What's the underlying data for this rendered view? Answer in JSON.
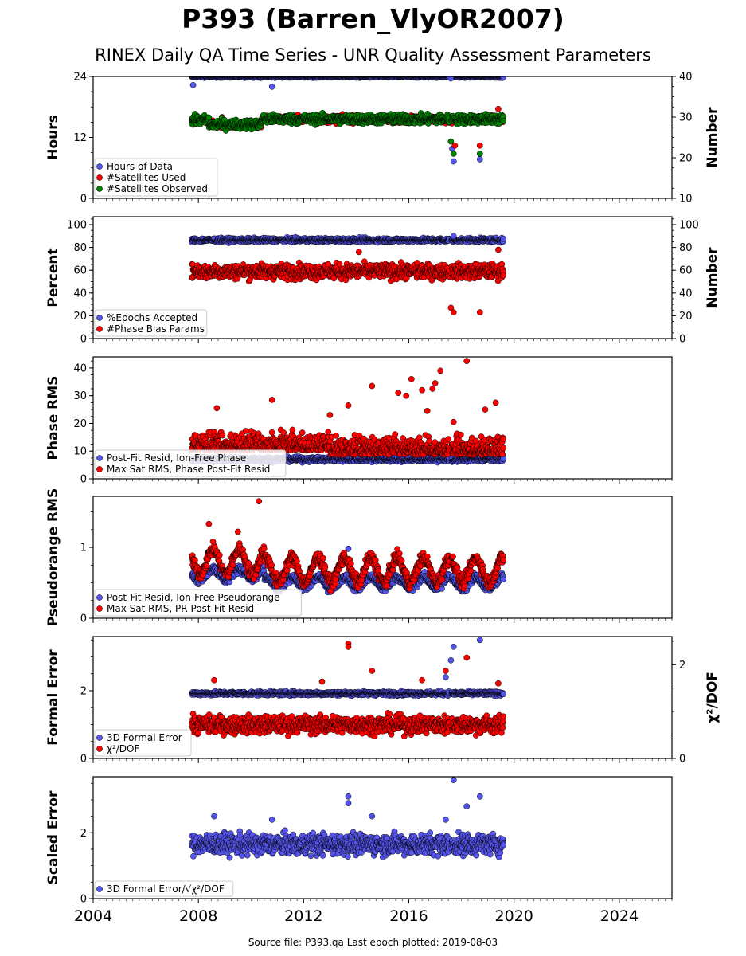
{
  "title": "P393 (Barren_VlyOR2007)",
  "subtitle": "RINEX Daily QA Time Series - UNR Quality Assessment Parameters",
  "footer": "Source file: P393.qa Last epoch plotted: 2019-08-03",
  "colors": {
    "blue": "#5555ee",
    "red": "#ff0000",
    "green": "#008000",
    "edge": "#000000"
  },
  "chart_data": [
    {
      "type": "scatter",
      "ylabel": "Hours",
      "ylim": [
        0,
        24
      ],
      "yticks": [
        0,
        12,
        24
      ],
      "y2label": "Number",
      "y2lim": [
        10,
        40
      ],
      "y2ticks": [
        10,
        20,
        30,
        40
      ],
      "xlim": [
        2004,
        2026
      ],
      "legend": "lower-left",
      "series": [
        {
          "name": "Hours of Data",
          "color": "blue",
          "axis": "left",
          "pattern": "flat",
          "mean": 23.9,
          "spread": 0.1,
          "extras": [
            [
              2007.8,
              22.3
            ],
            [
              2010.8,
              22.0
            ],
            [
              2017.6,
              23.6
            ],
            [
              2017.7,
              7.3
            ],
            [
              2018.7,
              7.7
            ],
            [
              2017.65,
              9.8
            ]
          ]
        },
        {
          "name": "#Satellites Used",
          "color": "red",
          "axis": "right",
          "pattern": "sats",
          "mean": 29.5,
          "spread": 0.6,
          "extras": [
            [
              2017.75,
              23.0
            ],
            [
              2018.7,
              23.0
            ],
            [
              2019.4,
              32.0
            ],
            [
              2008.9,
              30.0
            ]
          ]
        },
        {
          "name": "#Satellites Observed",
          "color": "green",
          "axis": "right",
          "pattern": "sats",
          "mean": 29.5,
          "spread": 0.8,
          "extras": [
            [
              2017.6,
              24.0
            ],
            [
              2017.7,
              21.0
            ],
            [
              2018.7,
              21.0
            ]
          ]
        }
      ]
    },
    {
      "type": "scatter",
      "ylabel": "Percent",
      "ylim": [
        0,
        107
      ],
      "yticks": [
        0,
        20,
        40,
        60,
        80,
        100
      ],
      "y2label": "Number",
      "y2lim": [
        0,
        107
      ],
      "y2ticks": [
        0,
        20,
        40,
        60,
        80,
        100
      ],
      "xlim": [
        2004,
        2026
      ],
      "legend": "lower-left",
      "series": [
        {
          "name": "%Epochs Accepted",
          "color": "blue",
          "axis": "left",
          "pattern": "flat",
          "mean": 86.5,
          "spread": 1.2,
          "extras": [
            [
              2017.7,
              90.0
            ]
          ]
        },
        {
          "name": "#Phase Bias Params",
          "color": "red",
          "axis": "left",
          "pattern": "noisy",
          "mean": 59,
          "spread": 4.5,
          "extras": [
            [
              2017.6,
              27.0
            ],
            [
              2017.7,
              23.0
            ],
            [
              2018.7,
              23.0
            ],
            [
              2014.1,
              76.0
            ],
            [
              2019.4,
              78.0
            ]
          ]
        }
      ]
    },
    {
      "type": "scatter",
      "ylabel": "Phase RMS",
      "ylim": [
        0,
        44
      ],
      "yticks": [
        0,
        10,
        20,
        30,
        40
      ],
      "xlim": [
        2004,
        2026
      ],
      "legend": "lower-left",
      "series": [
        {
          "name": "Post-Fit Resid, Ion-Free Phase",
          "color": "blue",
          "axis": "left",
          "pattern": "flat",
          "mean": 7.0,
          "spread": 0.6,
          "extras": []
        },
        {
          "name": "Max Sat RMS, Phase Post-Fit Resid",
          "color": "red",
          "axis": "left",
          "pattern": "skew",
          "mean": 10.5,
          "spread": 3.0,
          "extras": [
            [
              2008.7,
              25.5
            ],
            [
              2010.8,
              28.5
            ],
            [
              2013.0,
              23.0
            ],
            [
              2013.7,
              26.5
            ],
            [
              2014.6,
              33.5
            ],
            [
              2015.6,
              31.0
            ],
            [
              2016.1,
              36.0
            ],
            [
              2016.5,
              32.0
            ],
            [
              2016.9,
              32.5
            ],
            [
              2017.2,
              39.0
            ],
            [
              2018.2,
              42.5
            ],
            [
              2018.9,
              25.0
            ],
            [
              2019.3,
              27.5
            ],
            [
              2015.9,
              30.0
            ],
            [
              2017.0,
              34.5
            ],
            [
              2017.7,
              20.5
            ],
            [
              2016.7,
              24.5
            ]
          ]
        }
      ]
    },
    {
      "type": "scatter",
      "ylabel": "Pseudorange RMS",
      "ylim": [
        0,
        1.72
      ],
      "yticks": [
        0,
        1
      ],
      "xlim": [
        2004,
        2026
      ],
      "legend": "lower-left",
      "series": [
        {
          "name": "Post-Fit Resid, Ion-Free Pseudorange",
          "color": "blue",
          "axis": "left",
          "pattern": "season_lo",
          "mean": 0.5,
          "spread": 0.04,
          "extras": [
            [
              2013.7,
              0.98
            ]
          ]
        },
        {
          "name": "Max Sat RMS, PR Post-Fit Resid",
          "color": "red",
          "axis": "left",
          "pattern": "season_hi",
          "mean": 0.68,
          "spread": 0.06,
          "extras": [
            [
              2010.3,
              1.65
            ],
            [
              2008.4,
              1.33
            ],
            [
              2009.5,
              1.22
            ]
          ]
        }
      ]
    },
    {
      "type": "scatter",
      "ylabel": "Formal Error",
      "ylim": [
        0,
        3.6
      ],
      "yticks": [
        0,
        2
      ],
      "y2label": "χ²/DOF",
      "y2lim": [
        0,
        2.6
      ],
      "y2ticks": [
        0,
        2
      ],
      "xlim": [
        2004,
        2026
      ],
      "legend": "lower-left",
      "series": [
        {
          "name": "3D Formal Error",
          "color": "blue",
          "axis": "left",
          "pattern": "flat",
          "mean": 1.92,
          "spread": 0.04,
          "extras": [
            [
              2017.6,
              2.9
            ],
            [
              2017.7,
              3.3
            ],
            [
              2018.7,
              3.5
            ],
            [
              2017.4,
              2.4
            ]
          ]
        },
        {
          "name": "χ²/DOF",
          "color": "red",
          "axis": "right",
          "pattern": "noisy",
          "mean": 0.72,
          "spread": 0.13,
          "extras": [
            [
              2013.7,
              2.45
            ],
            [
              2013.7,
              2.38
            ],
            [
              2014.6,
              1.87
            ],
            [
              2018.2,
              2.15
            ],
            [
              2017.4,
              1.87
            ],
            [
              2016.5,
              1.67
            ],
            [
              2008.6,
              1.67
            ],
            [
              2012.7,
              1.64
            ],
            [
              2019.4,
              1.6
            ]
          ]
        }
      ]
    },
    {
      "type": "scatter",
      "ylabel": "Scaled Error",
      "ylim": [
        0,
        3.7
      ],
      "yticks": [
        0,
        2
      ],
      "xlim": [
        2004,
        2026
      ],
      "xticks": [
        2004,
        2008,
        2012,
        2016,
        2020,
        2024
      ],
      "legend": "lower-left",
      "series": [
        {
          "name": "3D Formal Error/√χ²/DOF",
          "color": "blue",
          "axis": "left",
          "pattern": "noisy",
          "mean": 1.65,
          "spread": 0.22,
          "extras": [
            [
              2013.7,
              3.1
            ],
            [
              2013.7,
              2.9
            ],
            [
              2017.7,
              3.6
            ],
            [
              2018.7,
              3.1
            ],
            [
              2018.2,
              2.8
            ],
            [
              2014.6,
              2.5
            ],
            [
              2008.6,
              2.5
            ],
            [
              2017.4,
              2.4
            ],
            [
              2010.8,
              2.4
            ]
          ]
        }
      ]
    }
  ]
}
